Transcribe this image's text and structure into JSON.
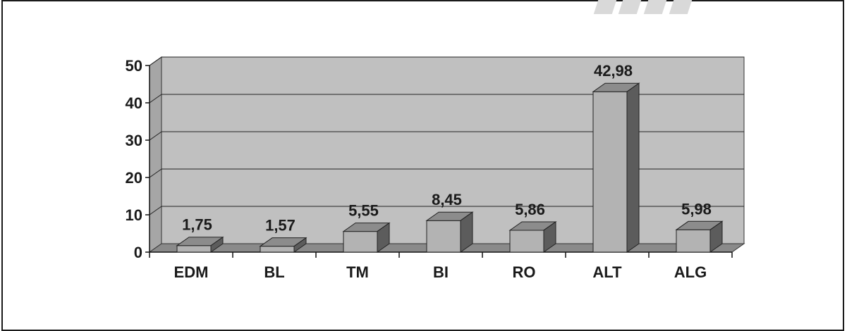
{
  "chart_data": {
    "type": "bar",
    "categories": [
      "EDM",
      "BL",
      "TM",
      "BI",
      "RO",
      "ALT",
      "ALG"
    ],
    "values": [
      1.75,
      1.57,
      5.55,
      8.45,
      5.86,
      42.98,
      5.98
    ],
    "value_labels": [
      "1,75",
      "1,57",
      "5,55",
      "8,45",
      "5,86",
      "42,98",
      "5,98"
    ],
    "yticks": [
      "0",
      "10",
      "20",
      "30",
      "40",
      "50"
    ],
    "ylim": [
      0,
      50
    ],
    "grid": true,
    "title": "",
    "xlabel": "",
    "ylabel": "",
    "colors": {
      "bar_front": "#b3b3b3",
      "bar_top": "#8c8c8c",
      "bar_side": "#5c5c5c",
      "wall": "#c0c0c0",
      "floor": "#8a8a8a"
    }
  }
}
